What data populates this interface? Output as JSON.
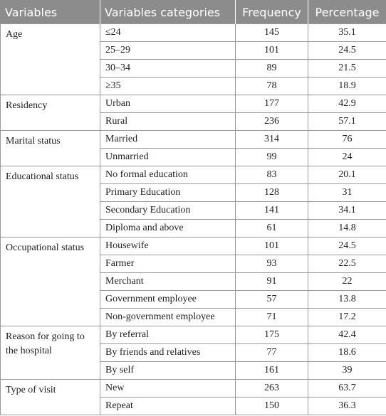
{
  "table": {
    "header": [
      "Variables",
      "Variables categories",
      "Frequency",
      "Percentage"
    ],
    "groups": [
      {
        "variable": "Age",
        "rows": [
          [
            "≤24",
            145,
            35.1
          ],
          [
            "25–29",
            101,
            24.5
          ],
          [
            "30–34",
            89,
            21.5
          ],
          [
            "≥35",
            78,
            18.9
          ]
        ]
      },
      {
        "variable": "Residency",
        "rows": [
          [
            "Urban",
            177,
            42.9
          ],
          [
            "Rural",
            236,
            57.1
          ]
        ]
      },
      {
        "variable": "Marital status",
        "rows": [
          [
            "Married",
            314,
            76
          ],
          [
            "Unmarried",
            99,
            24
          ]
        ]
      },
      {
        "variable": "Educational status",
        "rows": [
          [
            "No formal education",
            83,
            20.1
          ],
          [
            "Primary Education",
            128,
            31
          ],
          [
            "Secondary Education",
            141,
            34.1
          ],
          [
            "Diploma and above",
            61,
            14.8
          ]
        ]
      },
      {
        "variable": "Occupational status",
        "rows": [
          [
            "Housewife",
            101,
            24.5
          ],
          [
            "Farmer",
            93,
            22.5
          ],
          [
            "Merchant",
            91,
            22
          ],
          [
            "Government employee",
            57,
            13.8
          ],
          [
            "Non-government employee",
            71,
            17.2
          ]
        ]
      },
      {
        "variable": "Reason for going to the hospital",
        "rows": [
          [
            "By referral",
            175,
            42.4
          ],
          [
            "By friends and relatives",
            77,
            18.6
          ],
          [
            "By self",
            161,
            39
          ]
        ]
      },
      {
        "variable": "Type of visit",
        "rows": [
          [
            "New",
            263,
            63.7
          ],
          [
            "Repeat",
            150,
            36.3
          ]
        ]
      }
    ]
  }
}
